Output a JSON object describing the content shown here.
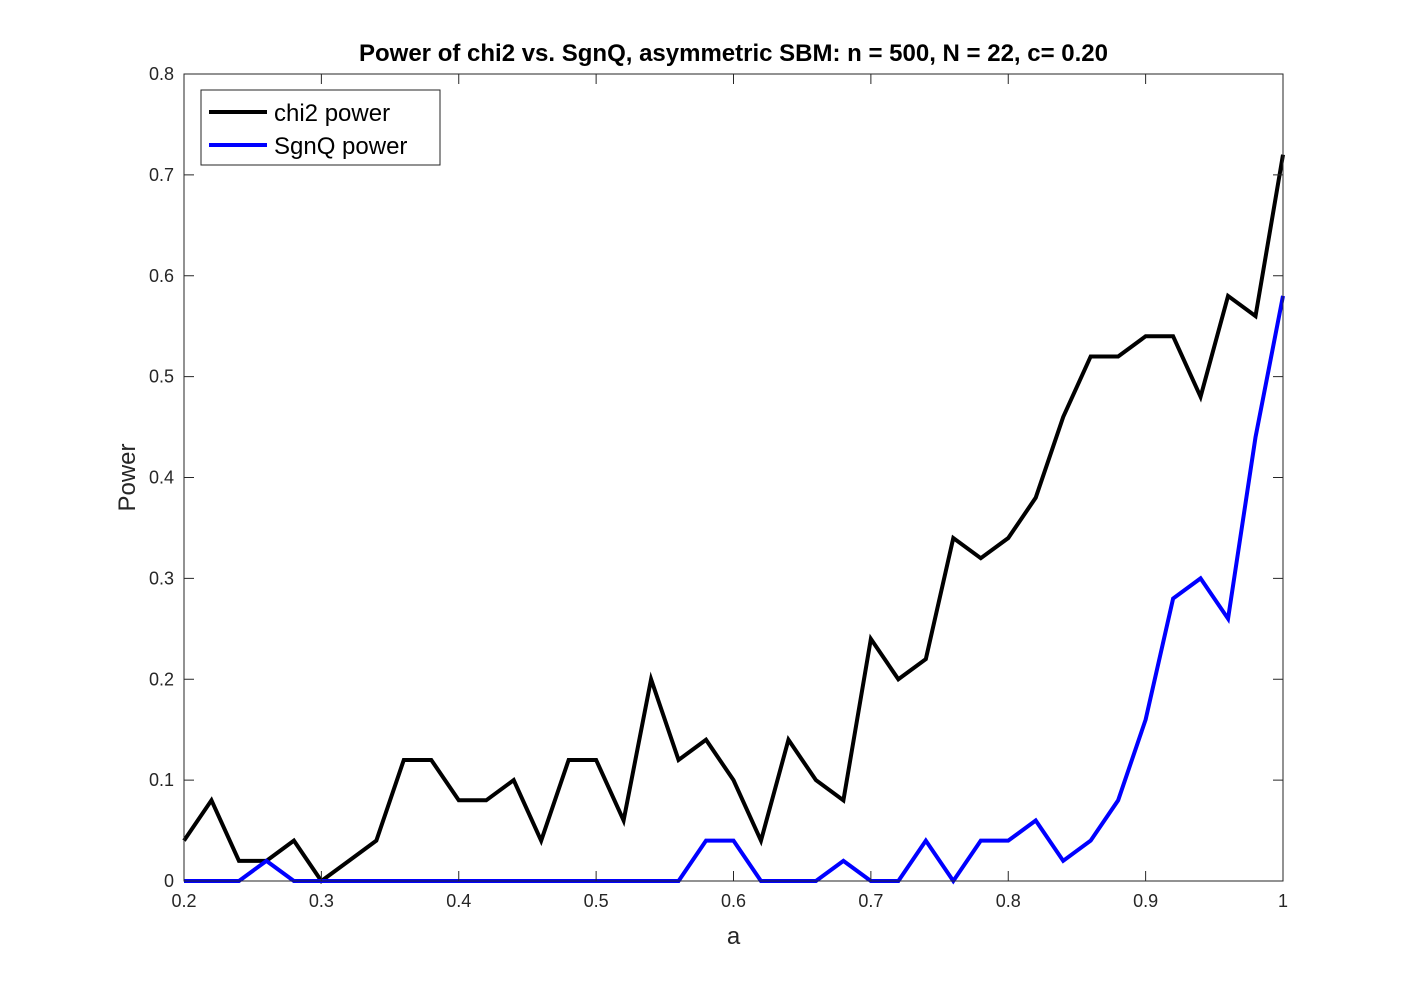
{
  "chart_data": {
    "type": "line",
    "title": "Power of chi2 vs. SgnQ, asymmetric SBM: n = 500, N = 22, c= 0.20",
    "xlabel": "a",
    "ylabel": "Power",
    "xlim": [
      0.2,
      1.0
    ],
    "ylim": [
      0,
      0.8
    ],
    "xticks": [
      0.2,
      0.3,
      0.4,
      0.5,
      0.6,
      0.7,
      0.8,
      0.9,
      1.0
    ],
    "xtick_labels": [
      "0.2",
      "0.3",
      "0.4",
      "0.5",
      "0.6",
      "0.7",
      "0.8",
      "0.9",
      "1"
    ],
    "yticks": [
      0,
      0.1,
      0.2,
      0.3,
      0.4,
      0.5,
      0.6,
      0.7,
      0.8
    ],
    "ytick_labels": [
      "0",
      "0.1",
      "0.2",
      "0.3",
      "0.4",
      "0.5",
      "0.6",
      "0.7",
      "0.8"
    ],
    "grid": false,
    "legend_position": "top-left",
    "x": [
      0.2,
      0.22,
      0.24,
      0.26,
      0.28,
      0.3,
      0.32,
      0.34,
      0.36,
      0.38,
      0.4,
      0.42,
      0.44,
      0.46,
      0.48,
      0.5,
      0.52,
      0.54,
      0.56,
      0.58,
      0.6,
      0.62,
      0.64,
      0.66,
      0.68,
      0.7,
      0.72,
      0.74,
      0.76,
      0.78,
      0.8,
      0.82,
      0.84,
      0.86,
      0.88,
      0.9,
      0.92,
      0.94,
      0.96,
      0.98,
      1.0
    ],
    "series": [
      {
        "name": "chi2 power",
        "color": "#000000",
        "values": [
          0.04,
          0.08,
          0.02,
          0.02,
          0.04,
          0.0,
          0.02,
          0.04,
          0.12,
          0.12,
          0.08,
          0.08,
          0.1,
          0.04,
          0.12,
          0.12,
          0.06,
          0.2,
          0.12,
          0.14,
          0.1,
          0.04,
          0.14,
          0.1,
          0.08,
          0.24,
          0.2,
          0.22,
          0.34,
          0.32,
          0.34,
          0.38,
          0.46,
          0.52,
          0.52,
          0.54,
          0.54,
          0.48,
          0.58,
          0.56,
          0.72
        ]
      },
      {
        "name": "SgnQ power",
        "color": "#0000ff",
        "values": [
          0.0,
          0.0,
          0.0,
          0.02,
          0.0,
          0.0,
          0.0,
          0.0,
          0.0,
          0.0,
          0.0,
          0.0,
          0.0,
          0.0,
          0.0,
          0.0,
          0.0,
          0.0,
          0.0,
          0.04,
          0.04,
          0.0,
          0.0,
          0.0,
          0.02,
          0.0,
          0.0,
          0.04,
          0.0,
          0.04,
          0.04,
          0.06,
          0.02,
          0.04,
          0.08,
          0.16,
          0.28,
          0.3,
          0.26,
          0.44,
          0.58
        ]
      }
    ]
  }
}
